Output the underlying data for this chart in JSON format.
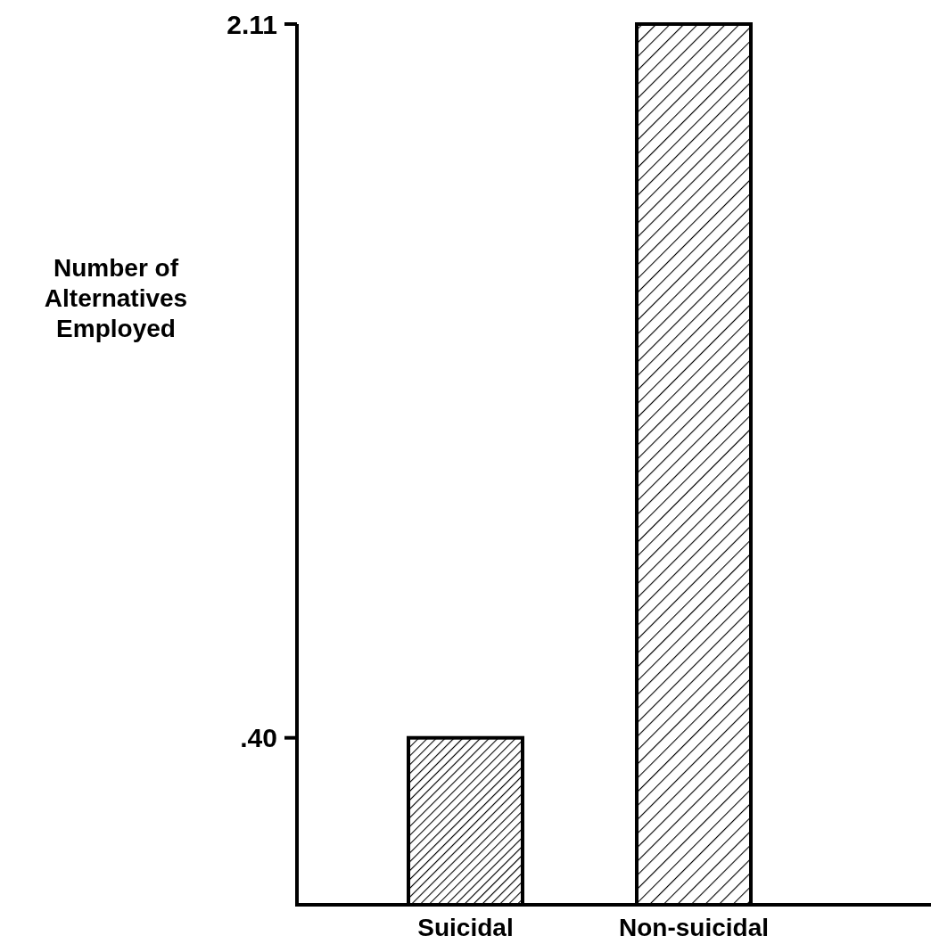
{
  "chart_data": {
    "type": "bar",
    "ylabel": "Number of\nAlternatives\nEmployed",
    "categories": [
      "Suicidal",
      "Non-suicidal"
    ],
    "values": [
      0.4,
      2.11
    ],
    "color": "#000000",
    "ylim": [
      0,
      2.11
    ],
    "yticks": [
      {
        "value": 0.4,
        "label": ".40"
      },
      {
        "value": 2.11,
        "label": "2.11"
      }
    ],
    "grid": false
  }
}
